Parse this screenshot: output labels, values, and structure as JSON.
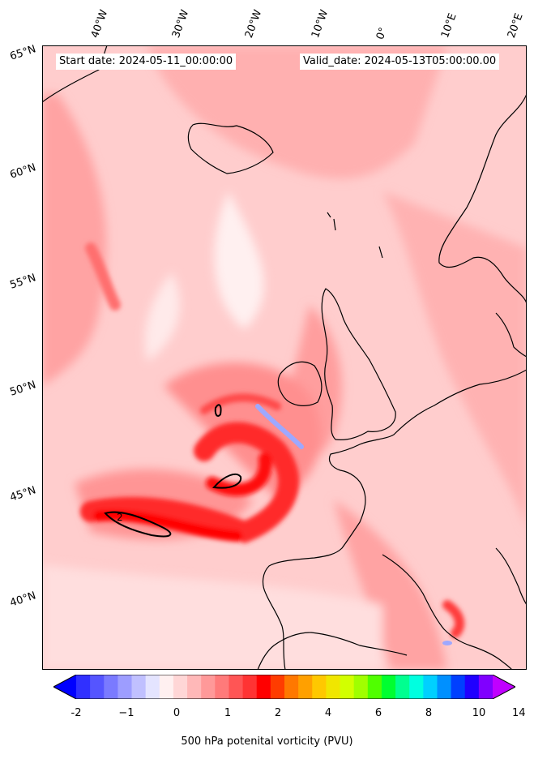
{
  "map": {
    "header": {
      "start": "Start date: 2024-05-11_00:00:00",
      "valid": "Valid_date: 2024-05-13T05:00:00.00"
    },
    "lon_labels": [
      "40°W",
      "30°W",
      "20°W",
      "10°W",
      "0°",
      "10°E",
      "20°E"
    ],
    "lat_labels": [
      "65°N",
      "60°N",
      "55°N",
      "50°N",
      "45°N",
      "40°N"
    ],
    "contour_label": "2",
    "colors": {
      "land_outline": "#000000",
      "background_pv": "#ffcdcd",
      "high_pv": "#ff1a1a",
      "negative_pv": "#9ea8ff"
    }
  },
  "colorbar": {
    "title": "500 hPa potenital vorticity (PVU)",
    "ticks": [
      "-2",
      "−1",
      "0",
      "1",
      "2",
      "4",
      "6",
      "8",
      "10",
      "14"
    ],
    "colors": [
      "#0000ff",
      "#3030ff",
      "#5555ff",
      "#7a7aff",
      "#9d9dff",
      "#c0c0ff",
      "#e4e4ff",
      "#fff0f0",
      "#ffd6d6",
      "#ffb8b8",
      "#ff9999",
      "#ff7a7a",
      "#ff5555",
      "#ff3333",
      "#ff0000",
      "#ff3c00",
      "#ff7800",
      "#ffa000",
      "#ffc800",
      "#f0e600",
      "#d2ff00",
      "#a0ff00",
      "#50ff00",
      "#00ff30",
      "#00ff90",
      "#00ffe0",
      "#00d0ff",
      "#0090ff",
      "#0040ff",
      "#2000ff",
      "#8000ff",
      "#c000ff"
    ]
  }
}
